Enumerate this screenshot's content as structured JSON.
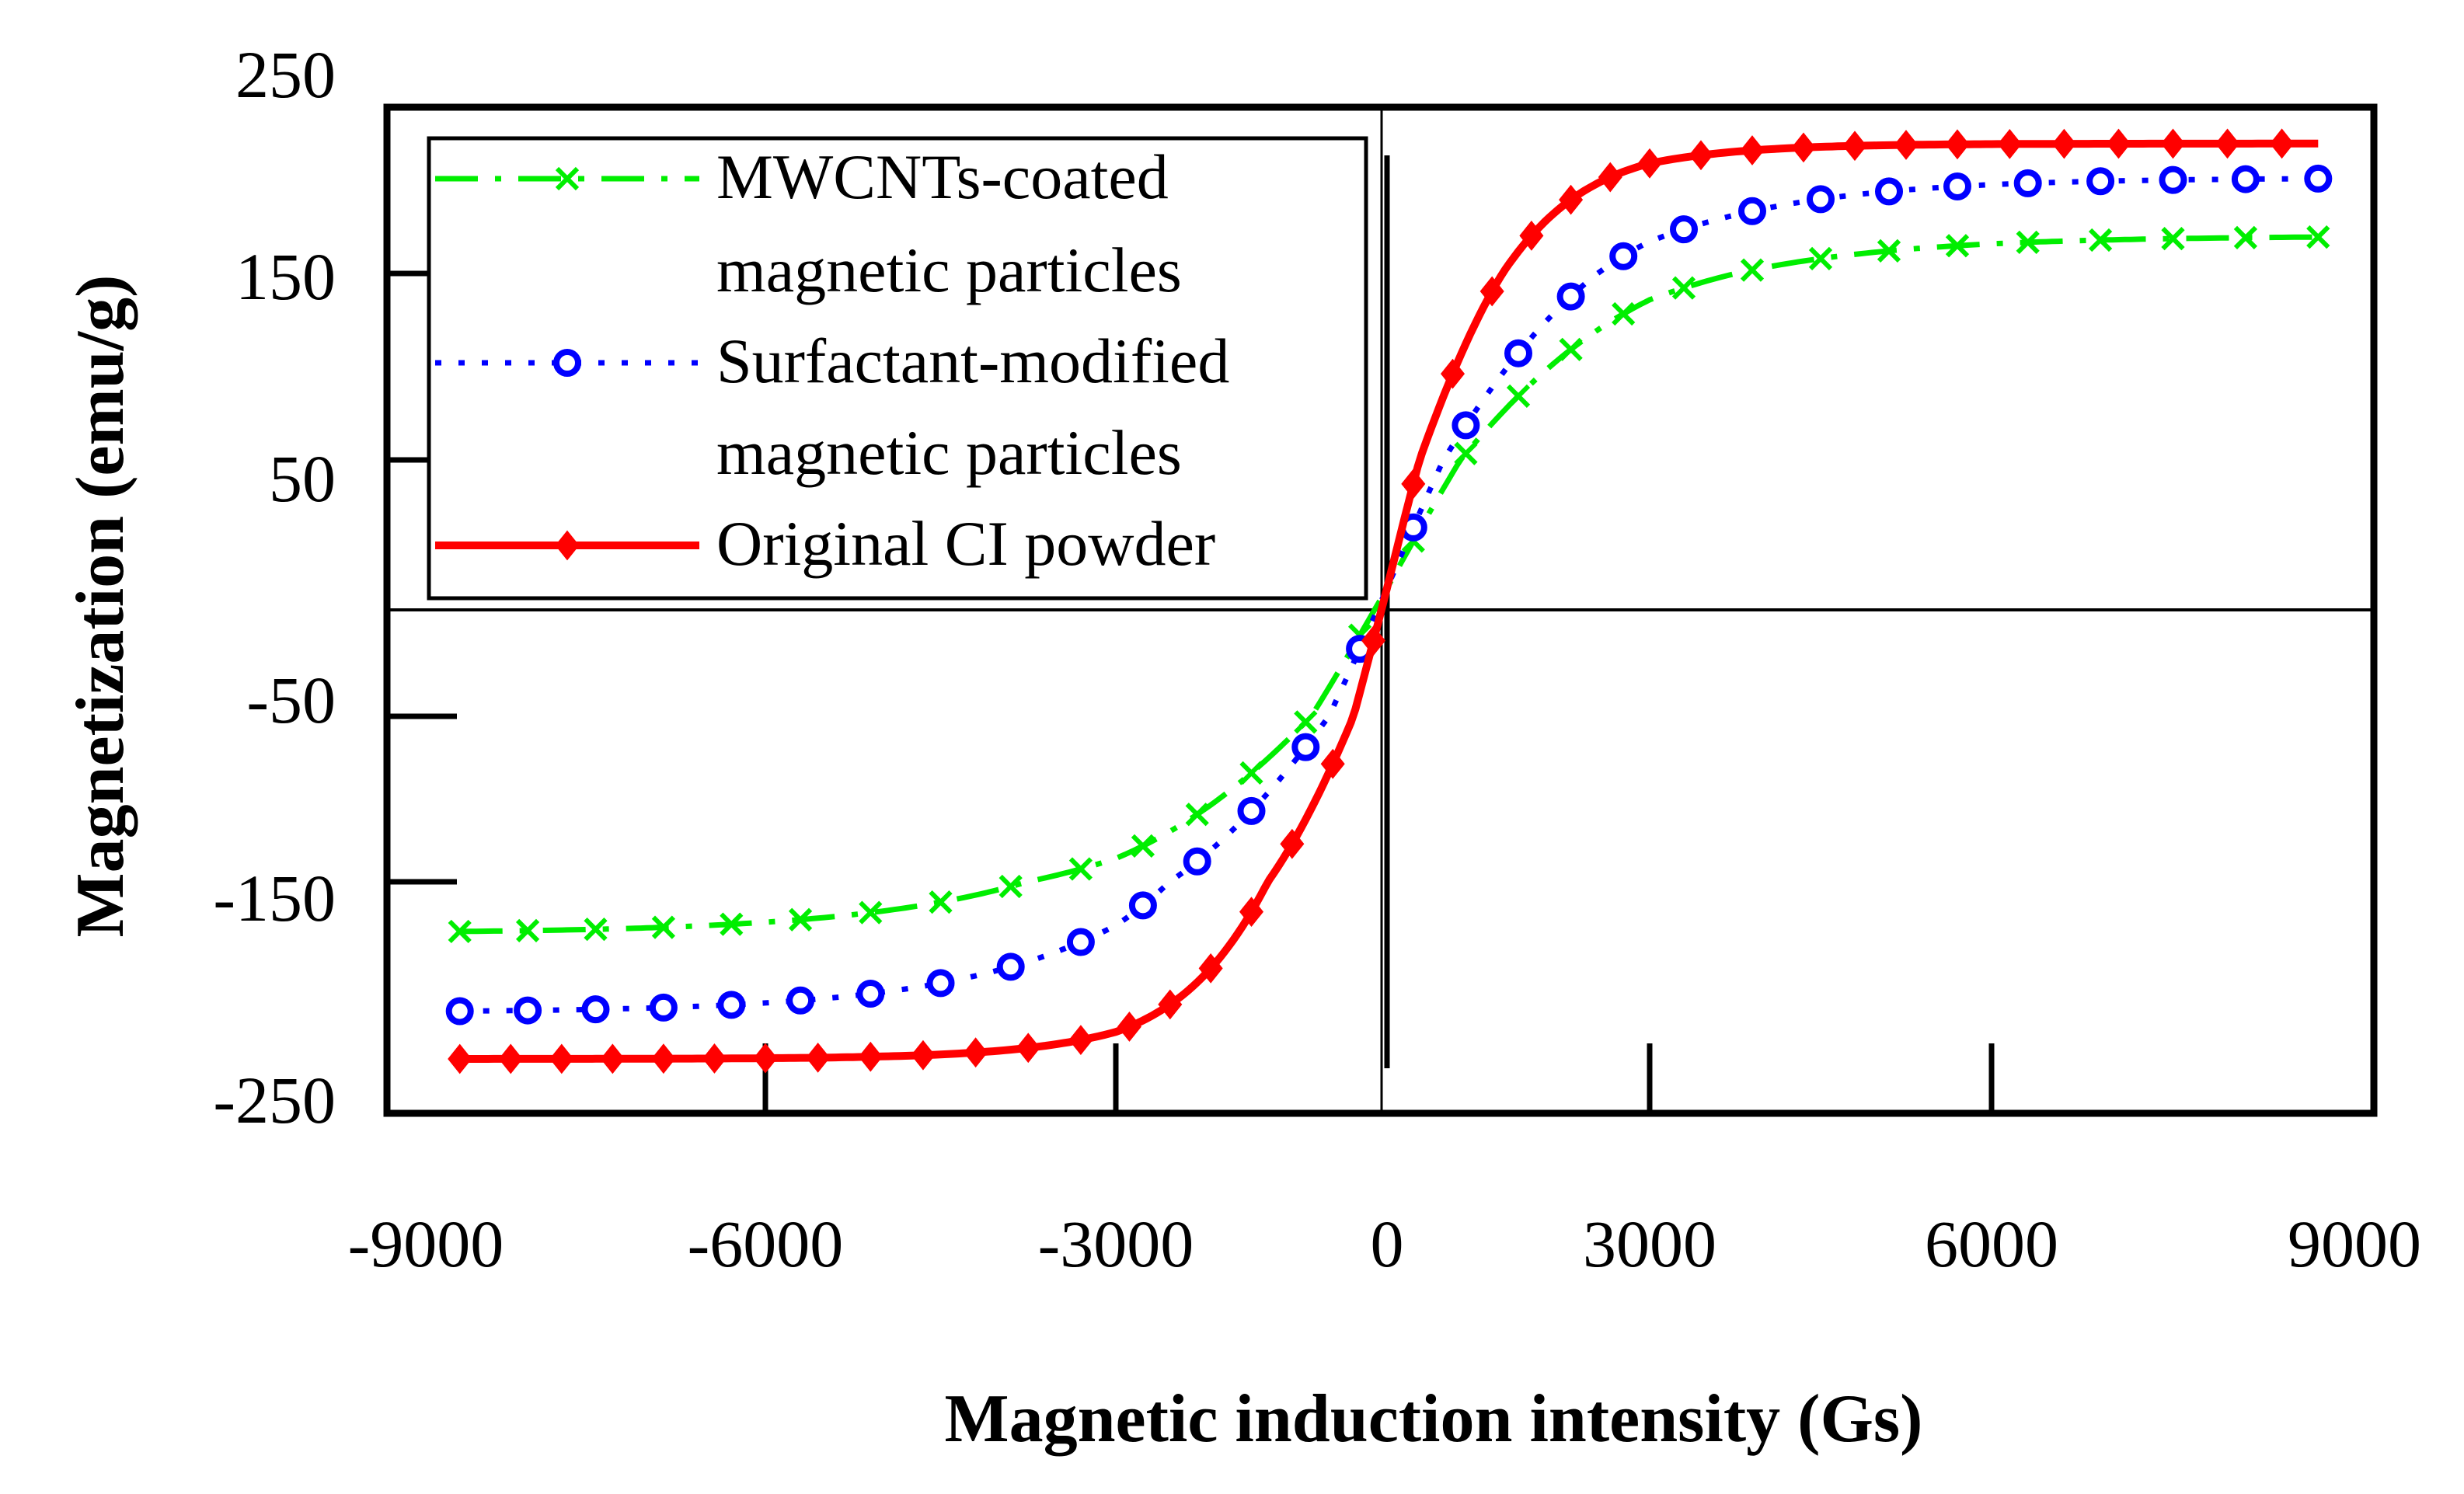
{
  "chart_data": {
    "type": "line",
    "title": "",
    "xlabel": "Magnetic induction intensity (Gs)",
    "ylabel": "Magnetization (emu/g)",
    "xlim": [
      -9000,
      9000
    ],
    "ylim": [
      -250,
      250
    ],
    "xticks": [
      -9000,
      -6000,
      -3000,
      0,
      3000,
      6000,
      9000
    ],
    "yticks": [
      250,
      150,
      50,
      -50,
      -150,
      -250
    ],
    "grid": false,
    "legend_position": "top-left",
    "series": [
      {
        "name": "MWCNTs-coated magnetic particles",
        "legend_lines": [
          "MWCNTs-coated",
          "magnetic  particles"
        ],
        "color": "#00ee00",
        "line_style": "dash-dot",
        "marker": "x",
        "Ms": 172,
        "Hs": 2800
      },
      {
        "name": "Surfactant-modified magnetic particles",
        "legend_lines": [
          "Surfactant-modified",
          "magnetic  particles"
        ],
        "color": "#0000ff",
        "line_style": "dotted",
        "marker": "circle",
        "Ms": 206,
        "Hs": 2600
      },
      {
        "name": "Original CI powder",
        "legend_lines": [
          "Original  CI powder"
        ],
        "color": "#ff0000",
        "line_style": "solid",
        "marker": "diamond",
        "Ms": 226,
        "Hs": 1650
      }
    ]
  }
}
